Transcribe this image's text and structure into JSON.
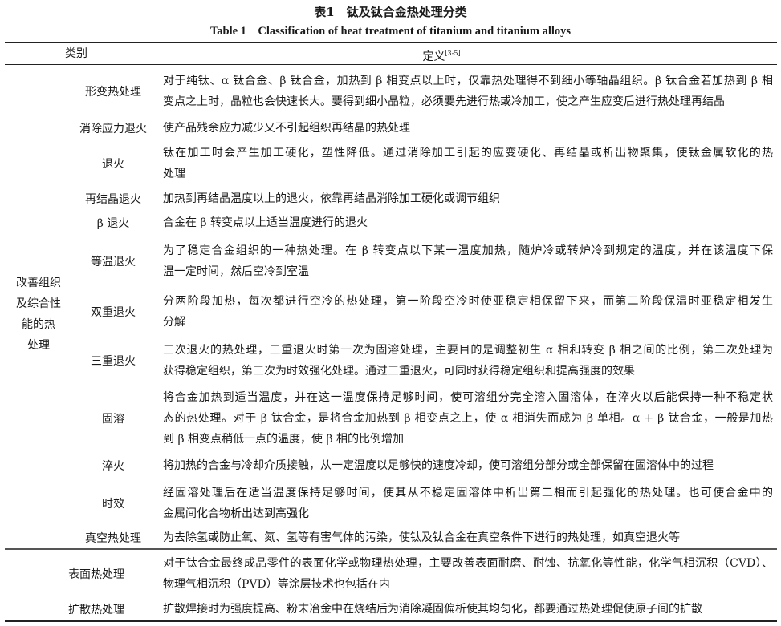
{
  "caption": {
    "cn": "表1　钛及钛合金热处理分类",
    "en": "Table 1　Classification of heat treatment of titanium and titanium alloys"
  },
  "header": {
    "category": "类别",
    "definition": "定义",
    "definition_ref": "[3-5]"
  },
  "group": {
    "lines": [
      "改善组织",
      "及综合性",
      "能的热",
      "处理"
    ]
  },
  "rows": [
    {
      "name": "形变热处理",
      "lines": [
        "对于纯钛、α 钛合金、β 钛合金，加热到 β 相变点以上时，仅靠热处理得不到细小等轴晶组织。β 钛合金若加热到 β 相",
        "变点之上时，晶粒也会快速长大。要得到细小晶粒，必须要先进行热或冷加工，使之产生应变后进行热处理再结晶"
      ]
    },
    {
      "name": "消除应力退火",
      "lines": [
        "使产品残余应力减少又不引起组织再结晶的热处理"
      ]
    },
    {
      "name": "退火",
      "lines": [
        "钛在加工时会产生加工硬化，塑性降低。通过消除加工引起的应变硬化、再结晶或析出物聚集，使钛金属软化的热",
        "处理"
      ]
    },
    {
      "name": "再结晶退火",
      "lines": [
        "加热到再结晶温度以上的退火，依靠再结晶消除加工硬化或调节组织"
      ]
    },
    {
      "name": "β 退火",
      "lines": [
        "合金在 β 转变点以上适当温度进行的退火"
      ]
    },
    {
      "name": "等温退火",
      "lines": [
        "为了稳定合金组织的一种热处理。在 β 转变点以下某一温度加热，随炉冷或转炉冷到规定的温度，并在该温度下保",
        "温一定时间，然后空冷到室温"
      ]
    },
    {
      "name": "双重退火",
      "lines": [
        "分两阶段加热，每次都进行空冷的热处理，第一阶段空冷时使亚稳定相保留下来，而第二阶段保温时亚稳定相发生",
        "分解"
      ]
    },
    {
      "name": "三重退火",
      "lines": [
        "三次退火的热处理，三重退火时第一次为固溶处理，主要目的是调整初生 α 相和转变 β 相之间的比例，第二次处理为",
        "获得稳定组织，第三次为时效强化处理。通过三重退火，可同时获得稳定组织和提高强度的效果"
      ]
    },
    {
      "name": "固溶",
      "lines": [
        "将合金加热到适当温度，并在这一温度保持足够时间，使可溶组分完全溶入固溶体，在淬火以后能保持一种不稳定状",
        "态的热处理。对于 β 钛合金，是将合金加热到 β 相变点之上，使 α 相消失而成为 β 单相。α + β 钛合金，一般是加热",
        "到 β 相变点稍低一点的温度，使 β 相的比例增加"
      ]
    },
    {
      "name": "淬火",
      "lines": [
        "将加热的合金与冷却介质接触，从一定温度以足够快的速度冷却，使可溶组分部分或全部保留在固溶体中的过程"
      ]
    },
    {
      "name": "时效",
      "lines": [
        "经固溶处理后在适当温度保持足够时间，使其从不稳定固溶体中析出第二相而引起强化的热处理。也可使合金中的",
        "金属间化合物析出达到高强化"
      ]
    },
    {
      "name": "真空热处理",
      "lines": [
        "为去除氢或防止氧、氮、氢等有害气体的污染，使钛及钛合金在真空条件下进行的热处理，如真空退火等"
      ]
    },
    {
      "name": "表面热处理",
      "lines": [
        "对于钛合金最终成品零件的表面化学或物理热处理，主要改善表面耐磨、耐蚀、抗氧化等性能，化学气相沉积（CVD）、",
        "物理气相沉积（PVD）等涂层技术也包括在内"
      ]
    },
    {
      "name": "扩散热处理",
      "lines": [
        "扩散焊接时为强度提高、粉末冶金中在烧结后为消除凝固偏析使其均匀化，都要通过热处理促使原子间的扩散"
      ]
    }
  ]
}
